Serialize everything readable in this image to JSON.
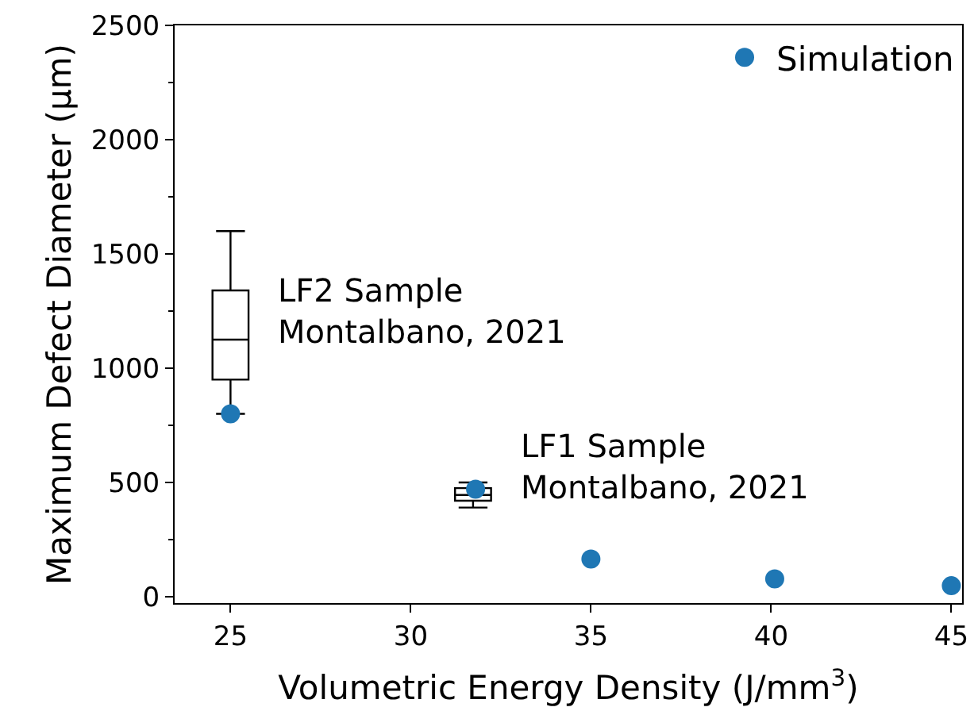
{
  "chart_data": {
    "type": "scatter",
    "xlabel": "Volumetric Energy Density (J/mm$^{3}$)",
    "ylabel": "Maximum Defect Diameter (µm)",
    "series": [
      {
        "name": "Simulation",
        "color": "#1f77b4",
        "x": [
          25,
          31.8,
          35,
          40.1,
          45
        ],
        "values": [
          800,
          470,
          165,
          78,
          48
        ]
      },
      {
        "type": "box",
        "color": "#000000",
        "x": [
          25,
          31.73
        ],
        "boxes": [
          {
            "low": 800,
            "q1": 950,
            "median": 1125,
            "q3": 1340,
            "high": 1600
          },
          {
            "low": 390,
            "q1": 420,
            "median": 445,
            "q3": 475,
            "high": 500
          }
        ]
      }
    ],
    "annotations": [
      {
        "text": "LF2 Sample\nMontalbano, 2021",
        "x": 25,
        "y": 1125
      },
      {
        "text": "LF1 Sample\nMontalbano, 2021",
        "x": 31.73,
        "y": 445
      }
    ],
    "xlim": [
      23.45,
      45.3
    ],
    "xticks": [
      25,
      30,
      35,
      40,
      45
    ],
    "ylim": [
      -28,
      2500
    ],
    "yticks": [
      0,
      500,
      1000,
      1500,
      2000,
      2500
    ],
    "legend": "top right",
    "marker": "circle"
  }
}
